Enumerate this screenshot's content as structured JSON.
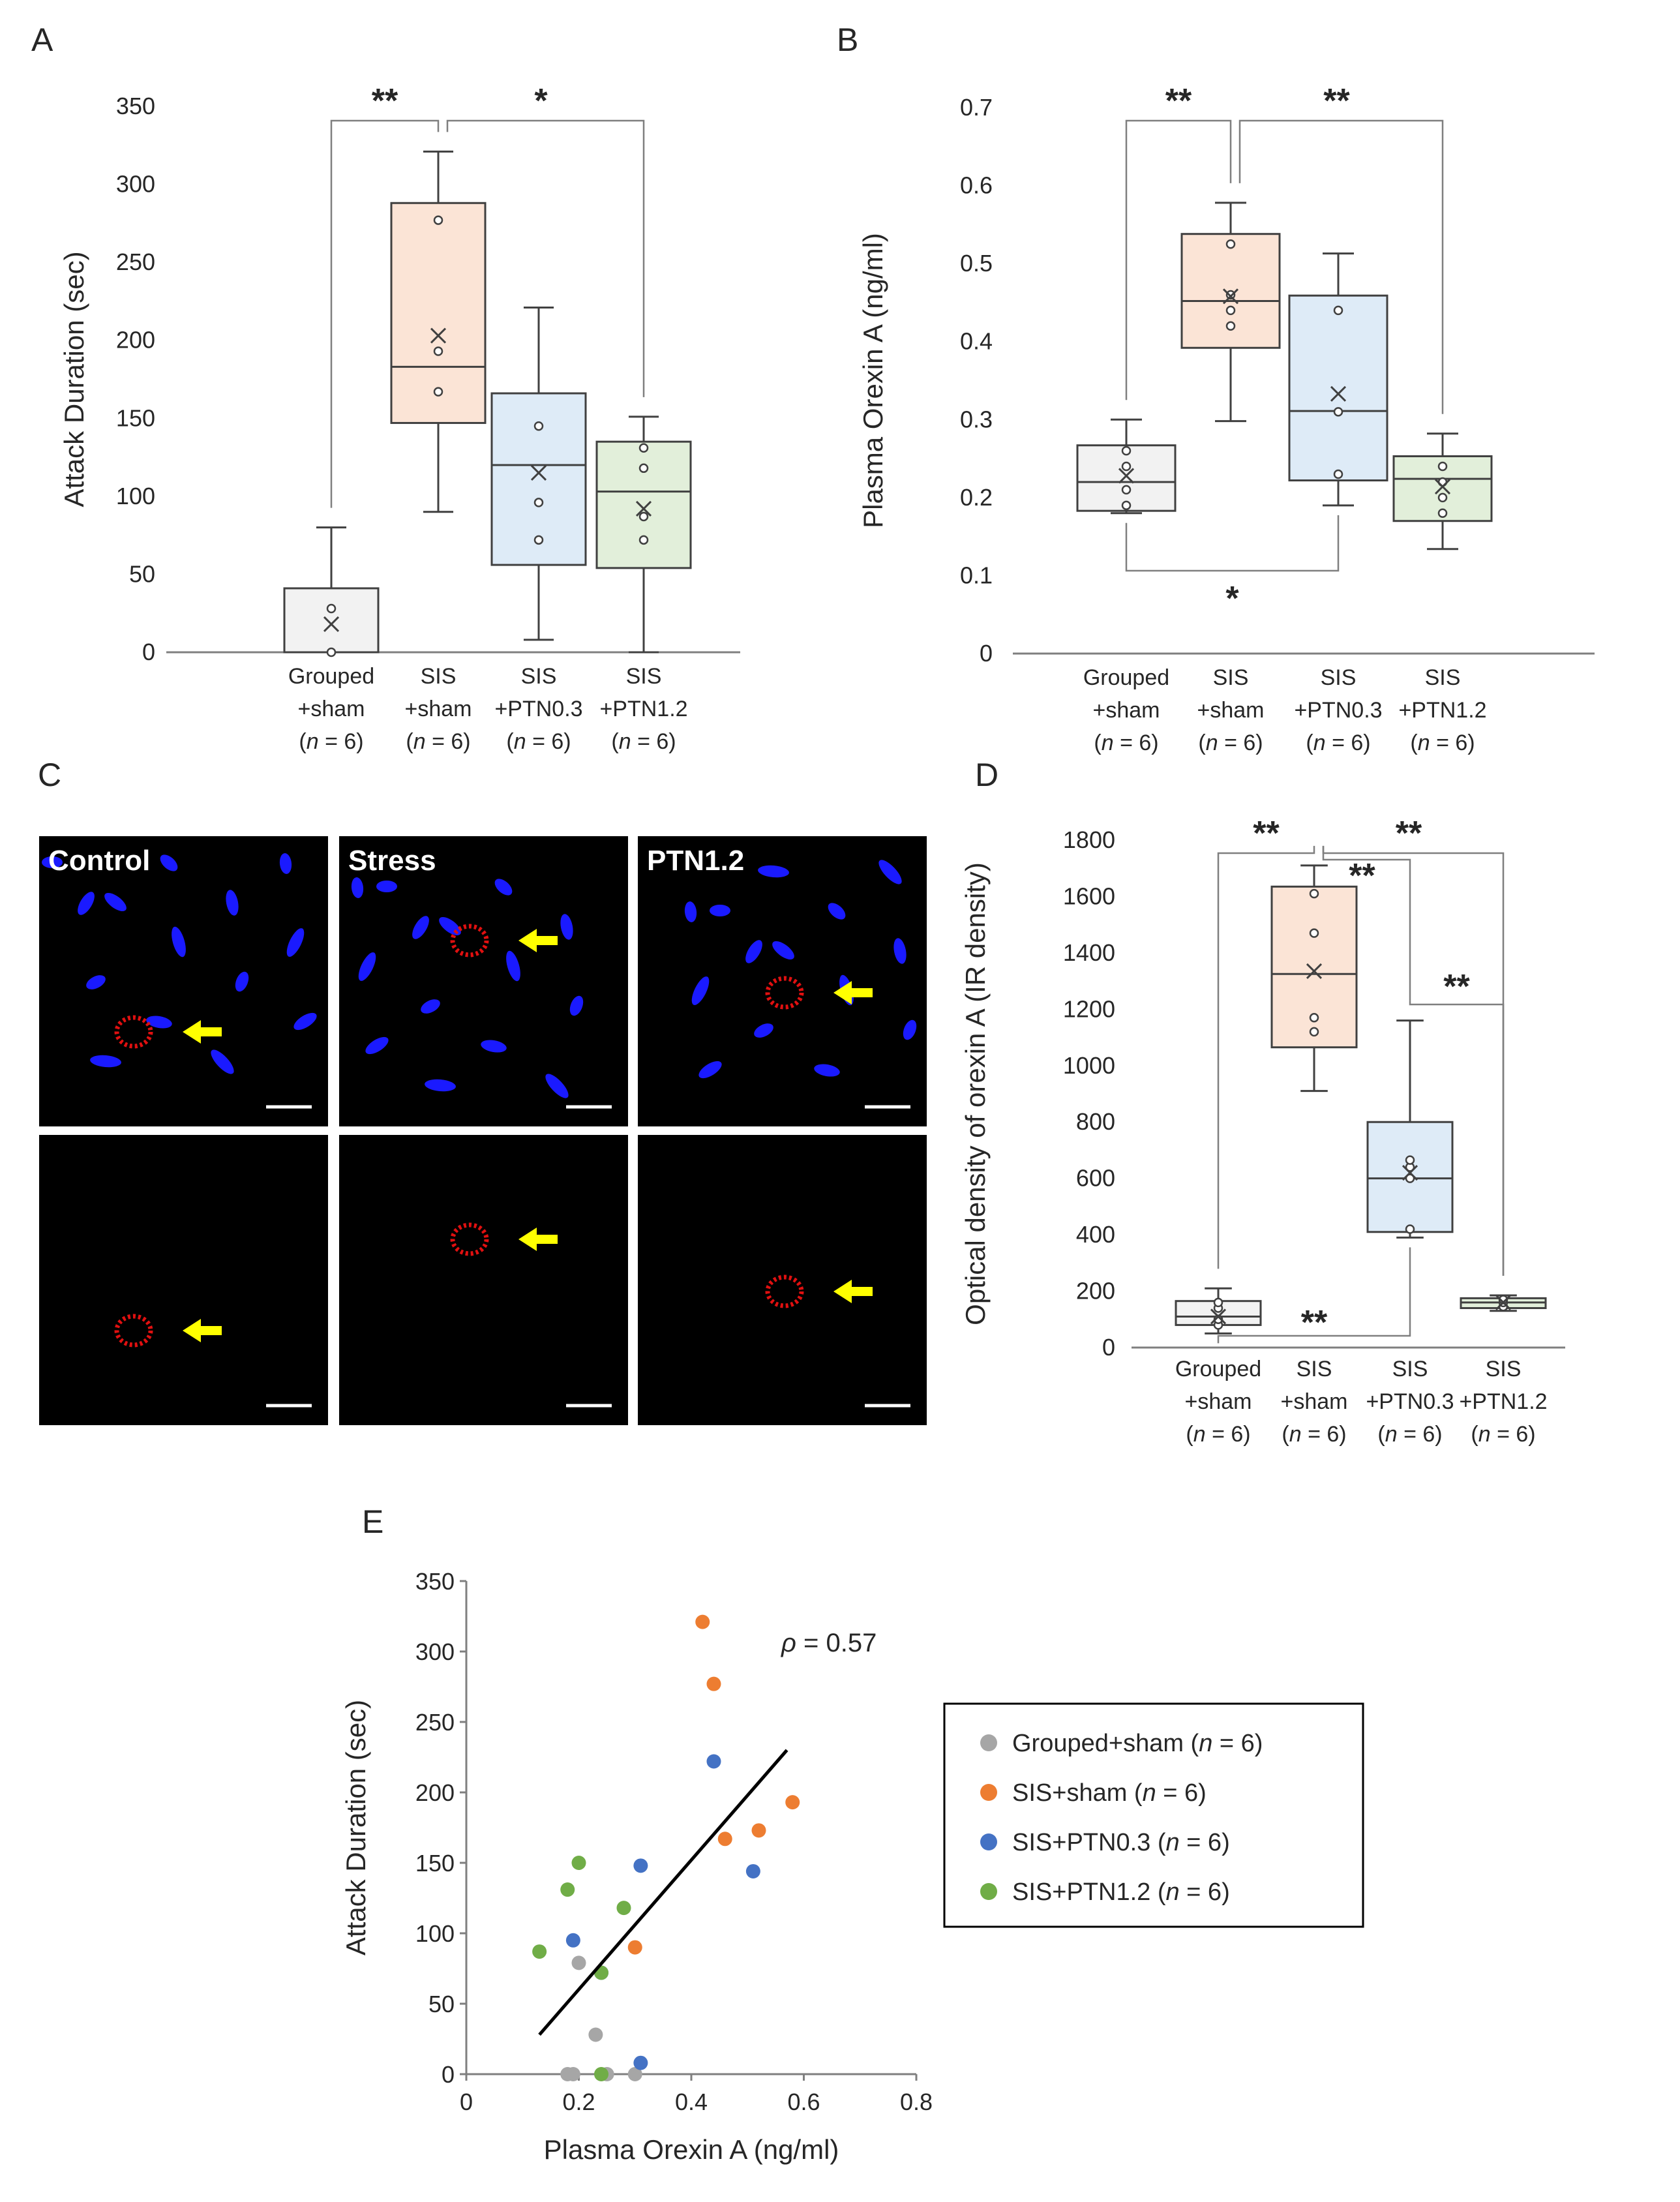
{
  "colors": {
    "grouped": "#f2f2f2",
    "sis_sham": "#fbe4d6",
    "ptn03": "#deebf7",
    "ptn12": "#e2efda",
    "scatter_grouped": "#a6a6a6",
    "scatter_sis": "#ed7d31",
    "scatter_ptn03": "#4472c4",
    "scatter_ptn12": "#70ad47",
    "axis": "#7f7f7f",
    "box_edge": "#404040",
    "arrow": "#ffff00",
    "nucleus": "#1a1aff",
    "signal": "#e01010"
  },
  "chart_data": [
    {
      "panel": "A",
      "type": "box",
      "ylabel": "Attack Duration (sec)",
      "ylim": [
        0,
        350
      ],
      "yticks": [
        0,
        50,
        100,
        150,
        200,
        250,
        300,
        350
      ],
      "groups": [
        {
          "label": [
            "Grouped",
            "+sham",
            "(n = 6)"
          ],
          "min": 0,
          "q1": 0,
          "median": 0,
          "q3": 41,
          "max": 80,
          "mean": 18,
          "points": [
            0,
            28
          ],
          "color_key": "grouped"
        },
        {
          "label": [
            "SIS",
            "+sham",
            "(n = 6)"
          ],
          "min": 90,
          "q1": 147,
          "median": 183,
          "q3": 288,
          "max": 321,
          "mean": 203,
          "points": [
            167,
            193,
            277
          ],
          "color_key": "sis_sham"
        },
        {
          "label": [
            "SIS",
            "+PTN0.3",
            "(n = 6)"
          ],
          "min": 8,
          "q1": 56,
          "median": 120,
          "q3": 166,
          "max": 221,
          "mean": 115,
          "points": [
            72,
            96,
            145
          ],
          "color_key": "ptn03"
        },
        {
          "label": [
            "SIS",
            "+PTN1.2",
            "(n = 6)"
          ],
          "min": 0,
          "q1": 54,
          "median": 103,
          "q3": 135,
          "max": 151,
          "mean": 92,
          "points": [
            72,
            87,
            118,
            131
          ],
          "color_key": "ptn12"
        }
      ],
      "significance": [
        {
          "from": 0,
          "to": 1,
          "label": "**"
        },
        {
          "from": 1,
          "to": 3,
          "label": "*"
        }
      ]
    },
    {
      "panel": "B",
      "type": "box",
      "ylabel": "Plasma Orexin A (ng/ml)",
      "ylim": [
        0,
        0.7
      ],
      "yticks": [
        0,
        0.1,
        0.2,
        0.3,
        0.4,
        0.5,
        0.6,
        0.7
      ],
      "groups": [
        {
          "label": [
            "Grouped",
            "+sham",
            "(n = 6)"
          ],
          "min": 0.18,
          "q1": 0.183,
          "median": 0.22,
          "q3": 0.267,
          "max": 0.3,
          "mean": 0.228,
          "points": [
            0.19,
            0.21,
            0.24,
            0.26
          ],
          "color_key": "grouped"
        },
        {
          "label": [
            "SIS",
            "+sham",
            "(n = 6)"
          ],
          "min": 0.298,
          "q1": 0.392,
          "median": 0.452,
          "q3": 0.538,
          "max": 0.578,
          "mean": 0.458,
          "points": [
            0.42,
            0.44,
            0.46,
            0.525
          ],
          "color_key": "sis_sham"
        },
        {
          "label": [
            "SIS",
            "+PTN0.3",
            "(n = 6)"
          ],
          "min": 0.19,
          "q1": 0.222,
          "median": 0.311,
          "q3": 0.459,
          "max": 0.513,
          "mean": 0.333,
          "points": [
            0.23,
            0.31,
            0.44
          ],
          "color_key": "ptn03"
        },
        {
          "label": [
            "SIS",
            "+PTN1.2",
            "(n = 6)"
          ],
          "min": 0.134,
          "q1": 0.17,
          "median": 0.224,
          "q3": 0.253,
          "max": 0.282,
          "mean": 0.214,
          "points": [
            0.18,
            0.2,
            0.22,
            0.24
          ],
          "color_key": "ptn12"
        }
      ],
      "significance": [
        {
          "from": 0,
          "to": 1,
          "label": "**"
        },
        {
          "from": 1,
          "to": 3,
          "label": "**"
        },
        {
          "from": 0,
          "to": 2,
          "label": "*",
          "below": true
        }
      ]
    },
    {
      "panel": "D",
      "type": "box",
      "ylabel": "Optical density of orexin A (IR density)",
      "ylim": [
        0,
        1800
      ],
      "yticks": [
        0,
        200,
        400,
        600,
        800,
        1000,
        1200,
        1400,
        1600,
        1800
      ],
      "groups": [
        {
          "label": [
            "Grouped",
            "+sham",
            "(n = 6)"
          ],
          "min": 50,
          "q1": 80,
          "median": 110,
          "q3": 165,
          "max": 210,
          "mean": 110,
          "points": [
            80,
            100,
            140,
            160
          ],
          "color_key": "grouped"
        },
        {
          "label": [
            "SIS",
            "+sham",
            "(n = 6)"
          ],
          "min": 910,
          "q1": 1065,
          "median": 1325,
          "q3": 1635,
          "max": 1710,
          "mean": 1335,
          "points": [
            1120,
            1170,
            1470,
            1610
          ],
          "color_key": "sis_sham"
        },
        {
          "label": [
            "SIS",
            "+PTN0.3",
            "(n = 6)"
          ],
          "min": 390,
          "q1": 410,
          "median": 600,
          "q3": 800,
          "max": 1160,
          "mean": 620,
          "points": [
            420,
            600,
            640,
            665
          ],
          "color_key": "ptn03"
        },
        {
          "label": [
            "SIS",
            "+PTN1.2",
            "(n = 6)"
          ],
          "min": 130,
          "q1": 140,
          "median": 160,
          "q3": 175,
          "max": 185,
          "mean": 160,
          "points": [
            145,
            160,
            170
          ],
          "color_key": "ptn12"
        }
      ],
      "significance": [
        {
          "from": 0,
          "to": 1,
          "label": "**"
        },
        {
          "from": 1,
          "to": 3,
          "label": "**"
        },
        {
          "from": 1,
          "to": 2,
          "label": "**"
        },
        {
          "from": 2,
          "to": 3,
          "label": "**"
        },
        {
          "from": 0,
          "to": 2,
          "label": "**",
          "below": true
        }
      ]
    },
    {
      "panel": "E",
      "type": "scatter",
      "xlabel": "Plasma Orexin A (ng/ml)",
      "ylabel": "Attack Duration (sec)",
      "xlim": [
        0,
        0.8
      ],
      "ylim": [
        0,
        350
      ],
      "xticks": [
        0,
        0.2,
        0.4,
        0.6,
        0.8
      ],
      "yticks": [
        0,
        50,
        100,
        150,
        200,
        250,
        300,
        350
      ],
      "annotation": "= 0.57",
      "annotation_symbol": "ρ",
      "trendline": {
        "x": [
          0.13,
          0.57
        ],
        "y": [
          28,
          230
        ]
      },
      "series": [
        {
          "name": "Grouped+sham",
          "n": "(n = 6)",
          "color_key": "scatter_grouped",
          "points": [
            [
              0.18,
              0
            ],
            [
              0.2,
              79
            ],
            [
              0.23,
              28
            ],
            [
              0.25,
              0
            ],
            [
              0.3,
              0
            ],
            [
              0.19,
              0
            ]
          ]
        },
        {
          "name": "SIS+sham",
          "n": "(n = 6)",
          "color_key": "scatter_sis",
          "points": [
            [
              0.42,
              321
            ],
            [
              0.44,
              277
            ],
            [
              0.58,
              193
            ],
            [
              0.52,
              173
            ],
            [
              0.46,
              167
            ],
            [
              0.3,
              90
            ]
          ]
        },
        {
          "name": "SIS+PTN0.3",
          "n": "(n = 6)",
          "color_key": "scatter_ptn03",
          "points": [
            [
              0.44,
              222
            ],
            [
              0.31,
              148
            ],
            [
              0.51,
              144
            ],
            [
              0.19,
              95
            ],
            [
              0.24,
              72
            ],
            [
              0.31,
              8
            ]
          ]
        },
        {
          "name": "SIS+PTN1.2",
          "n": "(n = 6)",
          "color_key": "scatter_ptn12",
          "points": [
            [
              0.2,
              150
            ],
            [
              0.18,
              131
            ],
            [
              0.28,
              118
            ],
            [
              0.13,
              87
            ],
            [
              0.24,
              72
            ],
            [
              0.24,
              0
            ]
          ]
        }
      ]
    }
  ],
  "panels": {
    "a": "A",
    "b": "B",
    "c": "C",
    "d": "D",
    "e": "E"
  },
  "micrograph": {
    "labels": [
      "Control",
      "Stress",
      "PTN1.2"
    ]
  },
  "legend_n_symbol": "n",
  "legend_n_suffix": " = 6)"
}
